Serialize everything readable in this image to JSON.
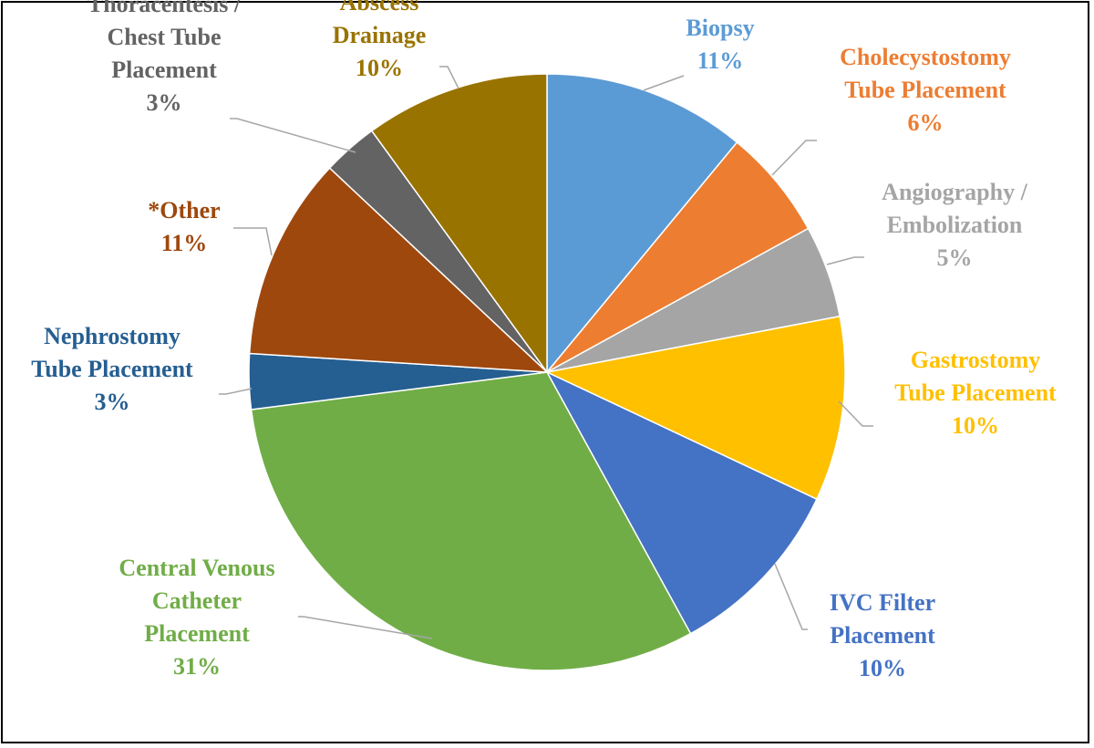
{
  "chart_data": {
    "type": "pie",
    "title": "",
    "start_angle_deg": 0,
    "direction": "clockwise",
    "slices": [
      {
        "label_lines": [
          "Biopsy"
        ],
        "value_text": "11%",
        "value": 11,
        "color": "#5B9BD5"
      },
      {
        "label_lines": [
          "Cholecystostomy",
          "Tube Placement"
        ],
        "value_text": "6%",
        "value": 6,
        "color": "#ED7D31"
      },
      {
        "label_lines": [
          "Angiography /",
          "Embolization"
        ],
        "value_text": "5%",
        "value": 5,
        "color": "#A5A5A5"
      },
      {
        "label_lines": [
          "Gastrostomy",
          "Tube Placement"
        ],
        "value_text": "10%",
        "value": 10,
        "color": "#FFC000"
      },
      {
        "label_lines": [
          "IVC Filter",
          "Placement"
        ],
        "value_text": "10%",
        "value": 10,
        "color": "#4472C4"
      },
      {
        "label_lines": [
          "Central Venous",
          "Catheter",
          "Placement"
        ],
        "value_text": "31%",
        "value": 31,
        "color": "#70AD47"
      },
      {
        "label_lines": [
          "Nephrostomy",
          "Tube Placement"
        ],
        "value_text": "3%",
        "value": 3,
        "color": "#255E91"
      },
      {
        "label_lines": [
          "*Other"
        ],
        "value_text": "11%",
        "value": 11,
        "color": "#9E480E"
      },
      {
        "label_lines": [
          "Thoracentesis /",
          "Chest Tube",
          "Placement"
        ],
        "value_text": "3%",
        "value": 3,
        "color": "#636363"
      },
      {
        "label_lines": [
          "Abscess",
          "Drainage"
        ],
        "value_text": "10%",
        "value": 10,
        "color": "#997300"
      }
    ]
  }
}
